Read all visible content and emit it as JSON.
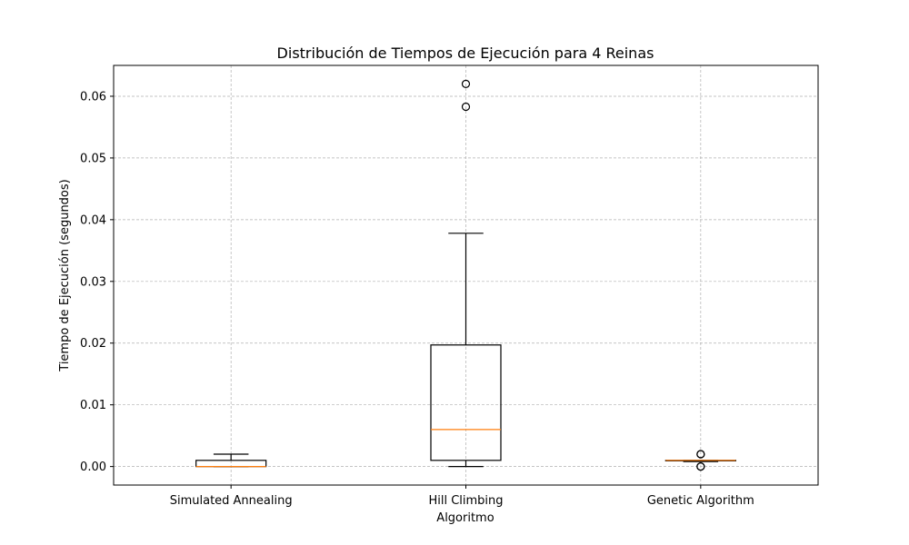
{
  "chart_data": {
    "type": "boxplot",
    "title": "Distribución de Tiempos de Ejecución para 4 Reinas",
    "xlabel": "Algoritmo",
    "ylabel": "Tiempo de Ejecución (segundos)",
    "categories": [
      "Simulated Annealing",
      "Hill Climbing",
      "Genetic Algorithm"
    ],
    "ylim": [
      -0.003,
      0.065
    ],
    "yticks": [
      0.0,
      0.01,
      0.02,
      0.03,
      0.04,
      0.05,
      0.06
    ],
    "ytick_labels": [
      "0.00",
      "0.01",
      "0.02",
      "0.03",
      "0.04",
      "0.05",
      "0.06"
    ],
    "grid": true,
    "boxes": [
      {
        "name": "Simulated Annealing",
        "whisker_low": 0.0,
        "q1": 0.0,
        "median": 0.0,
        "q3": 0.001,
        "whisker_high": 0.002,
        "outliers": []
      },
      {
        "name": "Hill Climbing",
        "whisker_low": 0.0,
        "q1": 0.001,
        "median": 0.006,
        "q3": 0.0197,
        "whisker_high": 0.0378,
        "outliers": [
          0.0583,
          0.062
        ]
      },
      {
        "name": "Genetic Algorithm",
        "whisker_low": 0.0008,
        "q1": 0.001,
        "median": 0.001,
        "q3": 0.001,
        "whisker_high": 0.001,
        "outliers": [
          0.0,
          0.0,
          0.002,
          0.002
        ]
      }
    ],
    "colors": {
      "box": "#000000",
      "median": "#ff7f0e",
      "grid": "#b0b0b0"
    }
  }
}
